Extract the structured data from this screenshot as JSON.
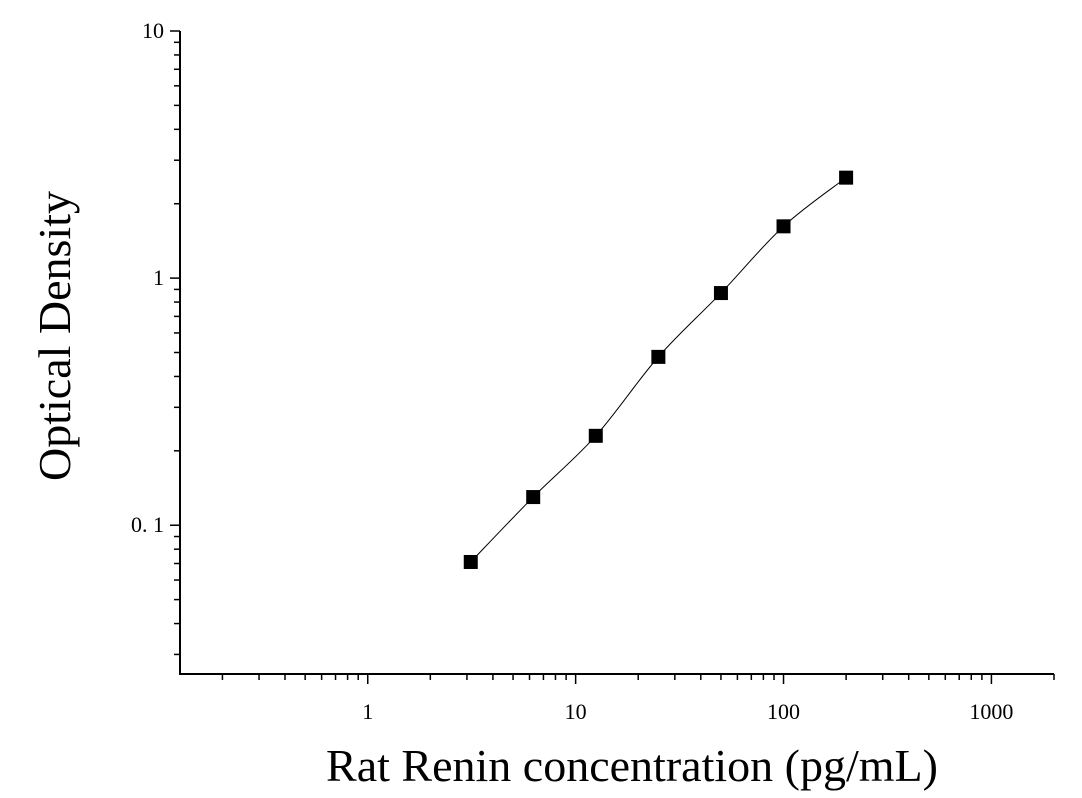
{
  "chart_data": {
    "type": "scatter",
    "title": "",
    "xlabel": "Rat Renin concentration (pg/mL)",
    "ylabel": "Optical Density",
    "xscale": "log",
    "yscale": "log",
    "xlim": [
      0.125,
      2000
    ],
    "ylim": [
      0.025,
      10
    ],
    "x_ticks": [
      {
        "value": 1,
        "label": "1"
      },
      {
        "value": 10,
        "label": "10"
      },
      {
        "value": 100,
        "label": "100"
      },
      {
        "value": 1000,
        "label": "1000"
      }
    ],
    "y_ticks": [
      {
        "value": 0.1,
        "label": "0. 1"
      },
      {
        "value": 1,
        "label": "1"
      },
      {
        "value": 10,
        "label": "10"
      }
    ],
    "grid": false,
    "legend": "none",
    "series": [
      {
        "marker": "square",
        "color": "#000000",
        "fit_line": true,
        "x": [
          3.13,
          6.25,
          12.5,
          25,
          50,
          100,
          200
        ],
        "y": [
          0.071,
          0.13,
          0.23,
          0.48,
          0.87,
          1.62,
          2.55
        ]
      }
    ]
  }
}
